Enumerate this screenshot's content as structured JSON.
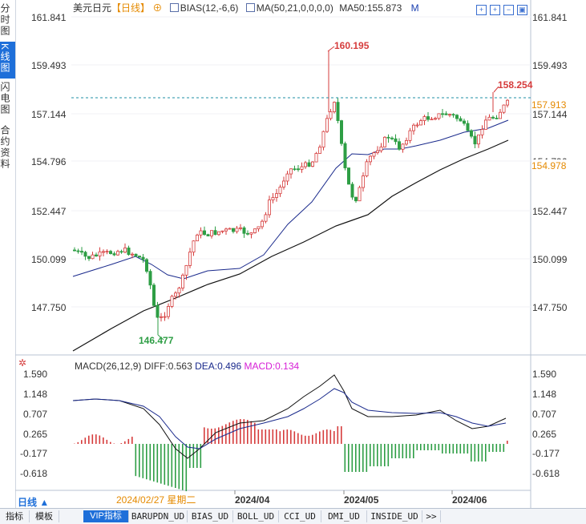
{
  "side_tabs": [
    {
      "label": "分时图",
      "selected": false
    },
    {
      "label": "K线图",
      "selected": true
    },
    {
      "label": "闪电图",
      "selected": false
    },
    {
      "label": "合约资料",
      "selected": false
    }
  ],
  "header": {
    "symbol": "美元日元",
    "period": "【日线】",
    "bias": "BIAS(12,-6,6)",
    "ma": "MA(50,21,0,0,0,0)",
    "ma50": "MA50:155.873",
    "m_label": "M"
  },
  "price_axis": {
    "ticks": [
      "161.841",
      "159.493",
      "157.144",
      "154.796",
      "152.447",
      "150.099",
      "147.750"
    ]
  },
  "annotations": {
    "high": "160.195",
    "low": "146.477",
    "recent_high": "158.254",
    "current_price": "157.913",
    "ma_value": "154.978"
  },
  "macd": {
    "title": "MACD(26,12,9)",
    "diff": "DIFF:0.563",
    "dea": "DEA:0.496",
    "macd": "MACD:0.134",
    "ticks": [
      "1.590",
      "1.148",
      "0.707",
      "0.265",
      "-0.177",
      "-0.618"
    ]
  },
  "time_axis": {
    "date_readout": "2024/02/27 星期二",
    "labels": [
      "2024/04",
      "2024/05",
      "2024/06"
    ]
  },
  "mode_label": "日线 ▲",
  "bottom_tabs": [
    "指标",
    "模板",
    "VIP指标",
    "BARUPDN_UD",
    "BIAS_UD",
    "BOLL_UD",
    "CCI_UD",
    "DMI_UD",
    "INSIDE_UD",
    ">>"
  ],
  "colors": {
    "up": "#d63c3c",
    "down": "#2e9e45",
    "accent": "#1e6fd9",
    "ma_blue": "#1a2a8c",
    "ma_black": "#111111",
    "macd_pink": "#d61fd6"
  }
}
